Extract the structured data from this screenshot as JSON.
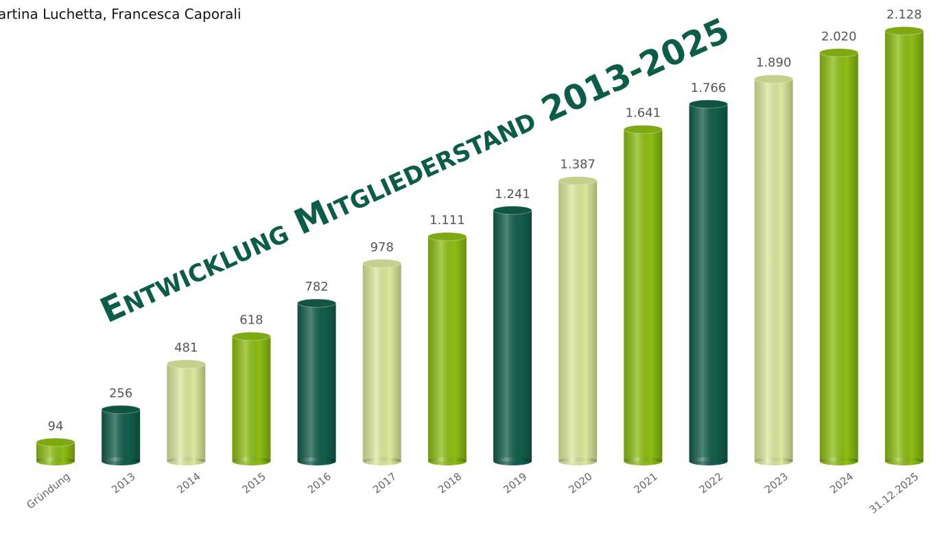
{
  "credit": "artina Luchetta, Francesca Caporali",
  "chart_data": {
    "type": "bar",
    "title": "Entwicklung Mitgliederstand 2013-2025",
    "categories": [
      "Gründung",
      "2013",
      "2014",
      "2015",
      "2016",
      "2017",
      "2018",
      "2019",
      "2020",
      "2021",
      "2022",
      "2023",
      "2024",
      "31.12.2025"
    ],
    "values": [
      94,
      256,
      481,
      618,
      782,
      978,
      1111,
      1241,
      1387,
      1641,
      1766,
      1890,
      2020,
      2128
    ],
    "value_labels": [
      "94",
      "256",
      "481",
      "618",
      "782",
      "978",
      "1.111",
      "1.241",
      "1.387",
      "1.641",
      "1.766",
      "1.890",
      "2.020",
      "2.128"
    ],
    "colors": [
      "#8dbd14",
      "#135e4b",
      "#dbe89c",
      "#8dbd14",
      "#135e4b",
      "#dbe89c",
      "#8dbd14",
      "#135e4b",
      "#dbe89c",
      "#8dbd14",
      "#135e4b",
      "#dbe89c",
      "#8dbd14",
      "#8dbd14"
    ]
  }
}
